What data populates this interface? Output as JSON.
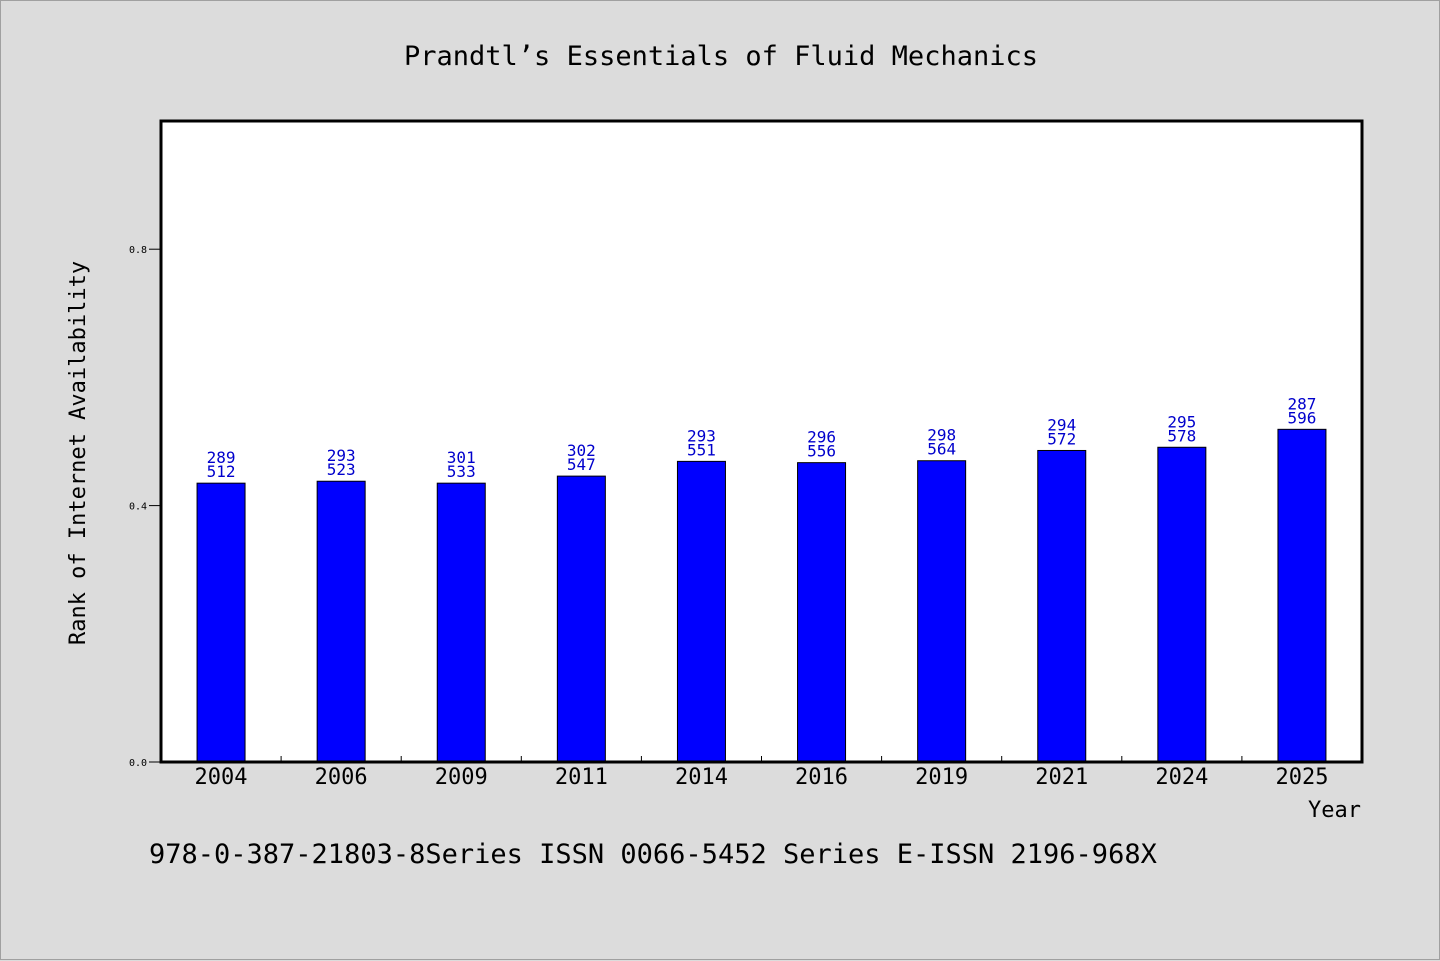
{
  "chart_data": {
    "type": "bar",
    "title": "Prandtl’s Essentials of Fluid Mechanics",
    "xlabel": "Year",
    "ylabel": "Rank of Internet Availability",
    "categories": [
      "2004",
      "2006",
      "2009",
      "2011",
      "2014",
      "2016",
      "2019",
      "2021",
      "2024",
      "2025"
    ],
    "values": [
      0.435,
      0.438,
      0.435,
      0.446,
      0.469,
      0.467,
      0.47,
      0.486,
      0.491,
      0.519
    ],
    "data_labels_top": [
      "289",
      "293",
      "301",
      "302",
      "293",
      "296",
      "298",
      "294",
      "295",
      "287"
    ],
    "data_labels_bottom": [
      "512",
      "523",
      "533",
      "547",
      "551",
      "556",
      "564",
      "572",
      "578",
      "596"
    ],
    "ylim": [
      0,
      1.0
    ],
    "yticks": [
      0.0,
      0.4,
      0.8
    ],
    "ytick_labels": [
      "0.0",
      "0.4",
      "0.8"
    ],
    "bar_color": "#0000ff",
    "label_color": "#0000cc",
    "grid": false,
    "legend": "none"
  },
  "footer": "978-0-387-21803-8Series ISSN 0066-5452 Series E-ISSN 2196-968X"
}
